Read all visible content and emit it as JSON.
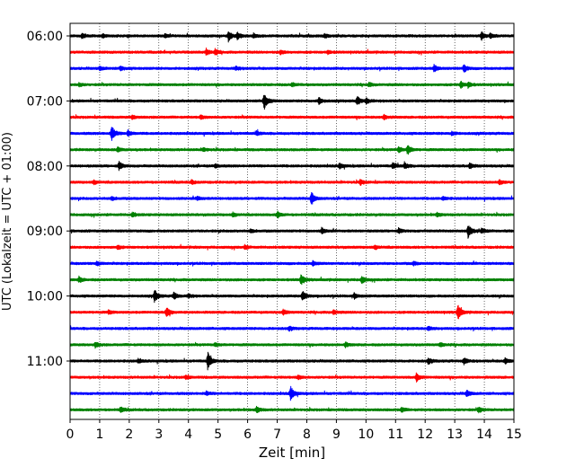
{
  "chart_data": {
    "type": "line",
    "title": "",
    "xlabel": "Zeit  [min]",
    "ylabel": "UTC (Lokalzeit = UTC + 01:00)",
    "xlim": [
      0,
      15
    ],
    "x_ticks": [
      "0",
      "1",
      "2",
      "3",
      "4",
      "5",
      "6",
      "7",
      "8",
      "9",
      "10",
      "11",
      "12",
      "13",
      "14",
      "15"
    ],
    "y_ticks": [
      "06:00",
      "07:00",
      "08:00",
      "09:00",
      "10:00",
      "11:00"
    ],
    "grid": "vertical dotted lines at each minute",
    "trace_colors": [
      "#000000",
      "#ff0000",
      "#0000ff",
      "#008000"
    ],
    "trace_count": 24,
    "traces": [
      {
        "start": "06:00",
        "color": "#000000",
        "events": [
          [
            0.4,
            0.25
          ],
          [
            1.1,
            0.2
          ],
          [
            3.2,
            0.2
          ],
          [
            5.35,
            0.55
          ],
          [
            5.65,
            0.4
          ],
          [
            6.2,
            0.25
          ],
          [
            8.6,
            0.2
          ],
          [
            13.9,
            0.45
          ],
          [
            14.2,
            0.3
          ]
        ]
      },
      {
        "start": "06:15",
        "color": "#ff0000",
        "events": [
          [
            4.6,
            0.35
          ],
          [
            4.9,
            0.3
          ],
          [
            7.1,
            0.2
          ],
          [
            8.7,
            0.2
          ]
        ]
      },
      {
        "start": "06:30",
        "color": "#0000ff",
        "events": [
          [
            1.0,
            0.2
          ],
          [
            1.7,
            0.25
          ],
          [
            5.6,
            0.2
          ],
          [
            12.3,
            0.4
          ],
          [
            13.3,
            0.45
          ]
        ]
      },
      {
        "start": "06:45",
        "color": "#008000",
        "events": [
          [
            0.3,
            0.2
          ],
          [
            7.5,
            0.2
          ],
          [
            10.1,
            0.2
          ],
          [
            13.2,
            0.35
          ],
          [
            13.45,
            0.3
          ]
        ]
      },
      {
        "start": "07:00",
        "color": "#000000",
        "events": [
          [
            6.55,
            1.0
          ],
          [
            8.4,
            0.4
          ],
          [
            9.7,
            0.5
          ],
          [
            10.0,
            0.3
          ]
        ]
      },
      {
        "start": "07:15",
        "color": "#ff0000",
        "events": [
          [
            2.1,
            0.2
          ],
          [
            4.4,
            0.2
          ],
          [
            10.6,
            0.25
          ]
        ]
      },
      {
        "start": "07:30",
        "color": "#0000ff",
        "events": [
          [
            1.4,
            0.9
          ],
          [
            1.95,
            0.35
          ],
          [
            6.3,
            0.2
          ],
          [
            12.9,
            0.2
          ]
        ]
      },
      {
        "start": "07:45",
        "color": "#008000",
        "events": [
          [
            1.6,
            0.25
          ],
          [
            4.5,
            0.2
          ],
          [
            11.4,
            0.55
          ],
          [
            11.1,
            0.3
          ]
        ]
      },
      {
        "start": "08:00",
        "color": "#000000",
        "events": [
          [
            1.65,
            0.45
          ],
          [
            4.9,
            0.2
          ],
          [
            9.1,
            0.3
          ],
          [
            10.9,
            0.3
          ],
          [
            11.3,
            0.35
          ],
          [
            13.5,
            0.3
          ]
        ]
      },
      {
        "start": "08:15",
        "color": "#ff0000",
        "events": [
          [
            0.8,
            0.2
          ],
          [
            4.1,
            0.2
          ],
          [
            9.8,
            0.3
          ],
          [
            14.5,
            0.3
          ]
        ]
      },
      {
        "start": "08:30",
        "color": "#0000ff",
        "events": [
          [
            1.4,
            0.2
          ],
          [
            4.3,
            0.2
          ],
          [
            8.15,
            0.75
          ],
          [
            12.6,
            0.2
          ]
        ]
      },
      {
        "start": "08:45",
        "color": "#008000",
        "events": [
          [
            2.1,
            0.25
          ],
          [
            5.5,
            0.2
          ],
          [
            7.0,
            0.35
          ],
          [
            12.4,
            0.2
          ]
        ]
      },
      {
        "start": "09:00",
        "color": "#000000",
        "events": [
          [
            6.1,
            0.2
          ],
          [
            8.5,
            0.3
          ],
          [
            11.1,
            0.25
          ],
          [
            13.45,
            0.75
          ],
          [
            13.9,
            0.3
          ]
        ]
      },
      {
        "start": "09:15",
        "color": "#ff0000",
        "events": [
          [
            1.6,
            0.2
          ],
          [
            5.9,
            0.2
          ],
          [
            10.3,
            0.2
          ]
        ]
      },
      {
        "start": "09:30",
        "color": "#0000ff",
        "events": [
          [
            0.9,
            0.2
          ],
          [
            8.2,
            0.25
          ],
          [
            11.6,
            0.2
          ]
        ]
      },
      {
        "start": "09:45",
        "color": "#008000",
        "events": [
          [
            0.3,
            0.3
          ],
          [
            7.8,
            0.6
          ],
          [
            9.85,
            0.4
          ]
        ]
      },
      {
        "start": "10:00",
        "color": "#000000",
        "events": [
          [
            2.85,
            0.7
          ],
          [
            3.5,
            0.4
          ],
          [
            4.0,
            0.2
          ],
          [
            7.85,
            0.6
          ],
          [
            9.6,
            0.3
          ]
        ]
      },
      {
        "start": "10:15",
        "color": "#ff0000",
        "events": [
          [
            1.3,
            0.2
          ],
          [
            3.25,
            0.55
          ],
          [
            7.2,
            0.3
          ],
          [
            8.9,
            0.25
          ],
          [
            13.1,
            0.9
          ]
        ]
      },
      {
        "start": "10:30",
        "color": "#0000ff",
        "events": [
          [
            7.4,
            0.2
          ],
          [
            12.1,
            0.2
          ]
        ]
      },
      {
        "start": "10:45",
        "color": "#008000",
        "events": [
          [
            0.85,
            0.3
          ],
          [
            4.9,
            0.2
          ],
          [
            9.3,
            0.25
          ],
          [
            12.5,
            0.2
          ]
        ]
      },
      {
        "start": "11:00",
        "color": "#000000",
        "events": [
          [
            2.3,
            0.2
          ],
          [
            4.65,
            1.0
          ],
          [
            12.1,
            0.3
          ],
          [
            13.3,
            0.35
          ],
          [
            14.7,
            0.3
          ]
        ]
      },
      {
        "start": "11:15",
        "color": "#ff0000",
        "events": [
          [
            3.9,
            0.2
          ],
          [
            7.7,
            0.2
          ],
          [
            11.7,
            0.45
          ]
        ]
      },
      {
        "start": "11:30",
        "color": "#0000ff",
        "events": [
          [
            4.6,
            0.2
          ],
          [
            7.45,
            0.8
          ],
          [
            13.4,
            0.35
          ]
        ]
      },
      {
        "start": "11:45",
        "color": "#008000",
        "events": [
          [
            1.7,
            0.3
          ],
          [
            6.3,
            0.35
          ],
          [
            11.2,
            0.25
          ],
          [
            13.8,
            0.3
          ]
        ]
      }
    ]
  }
}
